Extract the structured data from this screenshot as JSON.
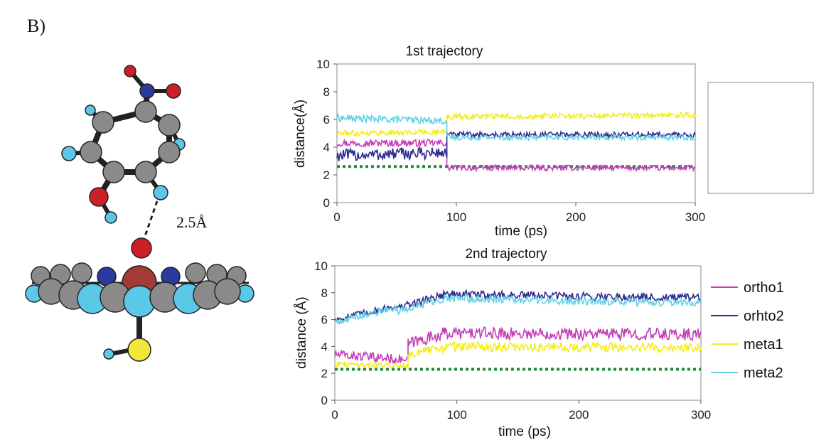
{
  "panel_label": "B)",
  "molecule": {
    "distance_label": "2.5Å",
    "atom_colors": {
      "carbon": "#8a8a8a",
      "hydrogen": "#5cc8e8",
      "oxygen": "#cc1f2a",
      "nitrogen": "#2b3a9e",
      "sulfur": "#f2e63a",
      "iron": "#a43a36"
    }
  },
  "chart_data": [
    {
      "type": "line",
      "title": "1st trajectory",
      "xlabel": "time (ps)",
      "ylabel": "distance(Å)",
      "xlim": [
        0,
        300
      ],
      "ylim": [
        0,
        10
      ],
      "xticks": [
        "0",
        "100",
        "200",
        "300"
      ],
      "yticks": [
        "0",
        "2",
        "4",
        "6",
        "8",
        "10"
      ],
      "grid": false,
      "legend_position": "right",
      "series": [
        {
          "name": "ortho1",
          "color": "#c23fb6",
          "segments": [
            [
              0,
              4.3,
              92,
              4.3,
              0.25
            ],
            [
              92,
              2.5,
              300,
              2.5,
              0.2
            ]
          ]
        },
        {
          "name": "ortho2",
          "color": "#2e2a8e",
          "segments": [
            [
              0,
              3.4,
              92,
              3.6,
              0.45
            ],
            [
              92,
              4.9,
              300,
              4.9,
              0.2
            ]
          ]
        },
        {
          "name": "meta1",
          "color": "#f2ee1a",
          "segments": [
            [
              0,
              5.0,
              92,
              5.1,
              0.2
            ],
            [
              92,
              6.2,
              300,
              6.3,
              0.2
            ]
          ]
        },
        {
          "name": "meta2",
          "color": "#62d2e6",
          "segments": [
            [
              0,
              6.1,
              92,
              5.9,
              0.25
            ],
            [
              92,
              4.7,
              300,
              4.7,
              0.2
            ]
          ]
        }
      ],
      "reference_line": {
        "y": 2.6,
        "color": "#1f8a3a"
      }
    },
    {
      "type": "line",
      "title": "2nd trajectory",
      "xlabel": "time (ps)",
      "ylabel": "distance (Å)",
      "xlim": [
        0,
        300
      ],
      "ylim": [
        0,
        10
      ],
      "xticks": [
        "0",
        "100",
        "200",
        "300"
      ],
      "yticks": [
        "0",
        "2",
        "4",
        "6",
        "8",
        "10"
      ],
      "grid": false,
      "legend_position": "right",
      "series": [
        {
          "name": "ortho1",
          "color": "#c23fb6",
          "segments": [
            [
              0,
              3.4,
              60,
              3.0,
              0.35
            ],
            [
              60,
              4.2,
              90,
              5.0,
              0.45
            ],
            [
              90,
              5.0,
              300,
              4.9,
              0.45
            ]
          ]
        },
        {
          "name": "orhto2",
          "color": "#2e2a8e",
          "segments": [
            [
              0,
              6.0,
              50,
              7.0,
              0.25
            ],
            [
              50,
              6.8,
              90,
              7.9,
              0.3
            ],
            [
              90,
              7.9,
              300,
              7.6,
              0.3
            ]
          ]
        },
        {
          "name": "meta1",
          "color": "#f2ee1a",
          "segments": [
            [
              0,
              2.7,
              60,
              2.6,
              0.2
            ],
            [
              60,
              3.4,
              90,
              3.9,
              0.35
            ],
            [
              90,
              4.0,
              300,
              3.9,
              0.35
            ]
          ]
        },
        {
          "name": "meta2",
          "color": "#62d2e6",
          "segments": [
            [
              0,
              5.8,
              50,
              6.9,
              0.25
            ],
            [
              50,
              6.6,
              90,
              7.6,
              0.3
            ],
            [
              90,
              7.6,
              300,
              7.2,
              0.3
            ]
          ]
        }
      ],
      "reference_line": {
        "y": 2.3,
        "color": "#1f8a3a"
      }
    }
  ]
}
